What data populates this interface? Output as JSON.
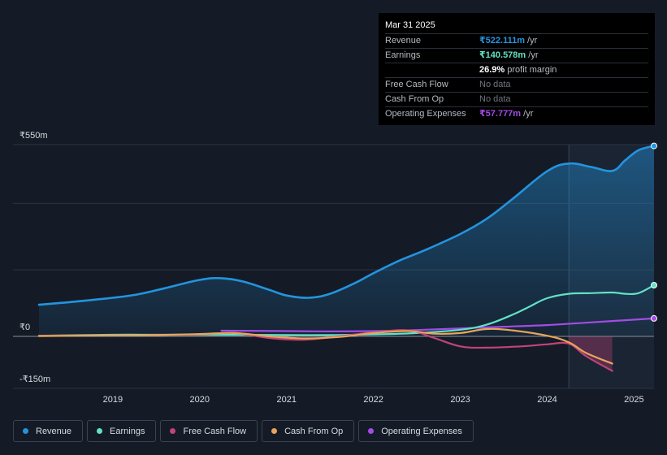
{
  "tooltip": {
    "date": "Mar 31 2025",
    "rows": [
      {
        "label": "Revenue",
        "value": "₹522.111m",
        "unit": " /yr",
        "color": "#2394df"
      },
      {
        "label": "Earnings",
        "value": "₹140.578m",
        "unit": " /yr",
        "color": "#60e2c6"
      },
      {
        "label": "",
        "value": "26.9%",
        "unit": " profit margin",
        "color": "#ffffff"
      },
      {
        "label": "Free Cash Flow",
        "value": "No data",
        "unit": "",
        "color": "#6e7580"
      },
      {
        "label": "Cash From Op",
        "value": "No data",
        "unit": "",
        "color": "#6e7580"
      },
      {
        "label": "Operating Expenses",
        "value": "₹57.777m",
        "unit": " /yr",
        "color": "#a24ce6"
      }
    ]
  },
  "legend": [
    {
      "label": "Revenue",
      "color": "#2394df"
    },
    {
      "label": "Earnings",
      "color": "#60e2c6"
    },
    {
      "label": "Free Cash Flow",
      "color": "#c2437a"
    },
    {
      "label": "Cash From Op",
      "color": "#e8a45b"
    },
    {
      "label": "Operating Expenses",
      "color": "#a24ce6"
    }
  ],
  "chart_data": {
    "type": "line",
    "title": "",
    "ylim": [
      -150,
      550
    ],
    "y_ticks": [
      {
        "value": 550,
        "label": "₹550m"
      },
      {
        "value": 0,
        "label": "₹0"
      },
      {
        "value": -150,
        "label": "-₹150m"
      }
    ],
    "x_ticks": [
      {
        "value": 2019,
        "label": "2019"
      },
      {
        "value": 2020,
        "label": "2020"
      },
      {
        "value": 2021,
        "label": "2021"
      },
      {
        "value": 2022,
        "label": "2022"
      },
      {
        "value": 2023,
        "label": "2023"
      },
      {
        "value": 2024,
        "label": "2024"
      },
      {
        "value": 2025,
        "label": "2025"
      }
    ],
    "xlim": [
      2018.15,
      2025.23
    ],
    "highlight_start": 2024.25,
    "series": [
      {
        "name": "Revenue",
        "color": "#2394df",
        "fill": true,
        "x": [
          2018.15,
          2018.5,
          2019.0,
          2019.3,
          2019.6,
          2020.0,
          2020.25,
          2020.5,
          2020.8,
          2021.0,
          2021.25,
          2021.5,
          2021.8,
          2022.0,
          2022.3,
          2022.6,
          2023.0,
          2023.3,
          2023.6,
          2024.0,
          2024.25,
          2024.5,
          2024.75,
          2024.9,
          2025.05,
          2025.23
        ],
        "values": [
          95,
          103,
          116,
          127,
          145,
          170,
          175,
          165,
          140,
          123,
          116,
          128,
          162,
          190,
          228,
          260,
          308,
          353,
          413,
          497,
          520,
          510,
          498,
          530,
          560,
          573
        ]
      },
      {
        "name": "Earnings",
        "color": "#60e2c6",
        "fill": false,
        "x": [
          2018.15,
          2019.0,
          2019.5,
          2020.0,
          2020.5,
          2021.0,
          2021.5,
          2022.0,
          2022.5,
          2023.0,
          2023.3,
          2023.6,
          2023.8,
          2024.0,
          2024.25,
          2024.5,
          2024.75,
          2024.9,
          2025.05,
          2025.23
        ],
        "values": [
          2,
          5,
          5,
          5,
          5,
          4,
          4,
          6,
          10,
          20,
          35,
          65,
          90,
          115,
          128,
          130,
          132,
          128,
          130,
          154
        ]
      },
      {
        "name": "Free Cash Flow",
        "color": "#c2437a",
        "fill": false,
        "x": [
          2018.15,
          2019.0,
          2019.5,
          2020.0,
          2020.4,
          2020.8,
          2021.2,
          2021.6,
          2022.0,
          2022.4,
          2022.7,
          2023.0,
          2023.3,
          2023.7,
          2024.0,
          2024.25,
          2024.45,
          2024.75
        ],
        "values": [
          2,
          3,
          4,
          6,
          10,
          -5,
          -10,
          0,
          12,
          18,
          -5,
          -30,
          -34,
          -30,
          -24,
          -22,
          -60,
          -104
        ]
      },
      {
        "name": "Cash From Op",
        "color": "#e8a45b",
        "fill": false,
        "x": [
          2018.15,
          2019.0,
          2019.5,
          2020.0,
          2020.4,
          2020.8,
          2021.2,
          2021.6,
          2022.0,
          2022.4,
          2022.7,
          2023.0,
          2023.3,
          2023.6,
          2024.0,
          2024.25,
          2024.45,
          2024.75
        ],
        "values": [
          1,
          3,
          4,
          7,
          10,
          0,
          -6,
          -2,
          10,
          16,
          8,
          10,
          22,
          18,
          2,
          -18,
          -50,
          -82
        ]
      },
      {
        "name": "Operating Expenses",
        "color": "#a24ce6",
        "fill": false,
        "x": [
          2020.25,
          2021.0,
          2021.5,
          2022.0,
          2022.5,
          2023.0,
          2023.5,
          2024.0,
          2024.5,
          2025.23
        ],
        "values": [
          17,
          16,
          15,
          16,
          19,
          24,
          29,
          34,
          42,
          54
        ]
      }
    ]
  }
}
